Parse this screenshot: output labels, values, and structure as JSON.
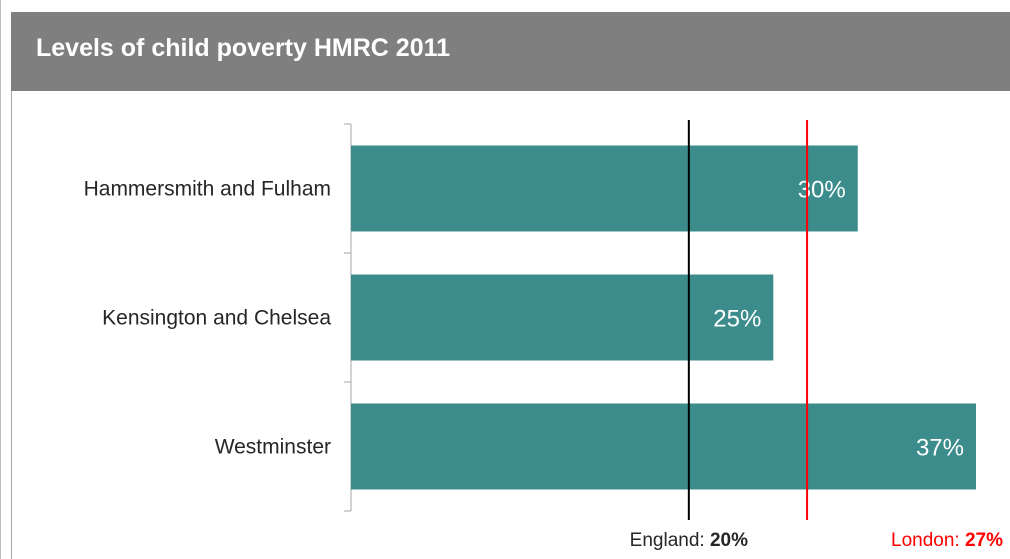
{
  "chart_data": {
    "type": "bar",
    "orientation": "horizontal",
    "title": "Levels of child poverty HMRC 2011",
    "categories": [
      "Hammersmith and Fulham",
      "Kensington and Chelsea",
      "Westminster"
    ],
    "values": [
      30,
      25,
      37
    ],
    "value_labels": [
      "30%",
      "25%",
      "37%"
    ],
    "xlim": [
      0,
      37
    ],
    "bar_color": "#3c8c8c",
    "reference_lines": [
      {
        "name": "England",
        "value": 20,
        "label_prefix": "England: ",
        "label_value": "20%",
        "color": "#000000"
      },
      {
        "name": "London",
        "value": 27,
        "label_prefix": "London: ",
        "label_value": "27%",
        "color": "#ff0000"
      }
    ],
    "grid": false,
    "legend": "none"
  },
  "colors": {
    "header_bg": "#7f7f7f",
    "title_text": "#ffffff",
    "bar": "#3c8c8c",
    "england_line": "#000000",
    "london_line": "#ff0000"
  }
}
